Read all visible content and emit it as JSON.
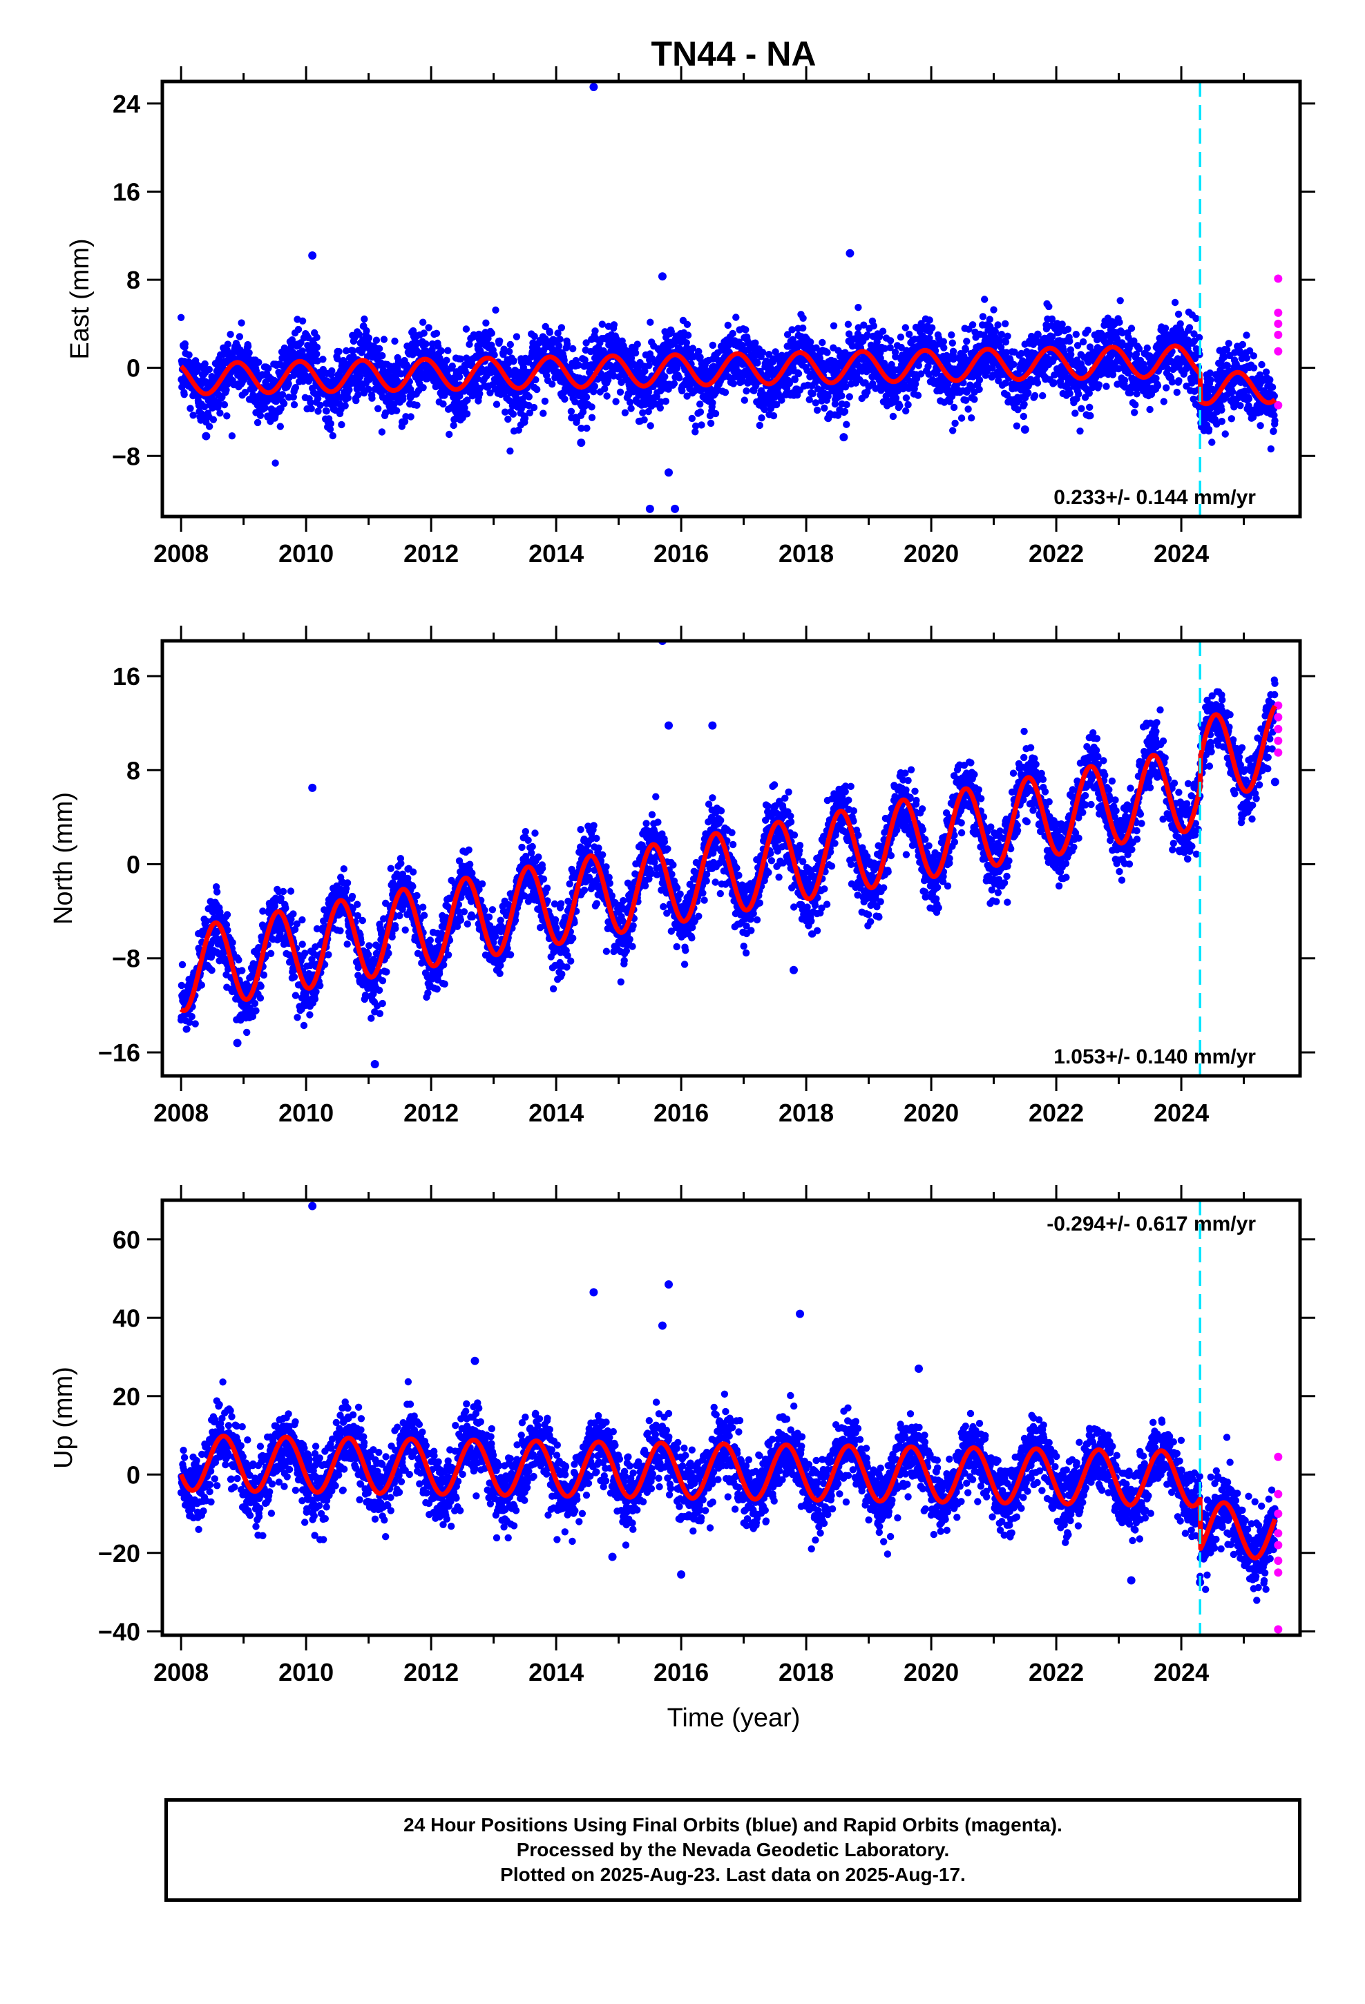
{
  "chart_data": {
    "type": "scatter",
    "title": "TN44 - NA",
    "xlabel": "Time (year)",
    "x_ticks": [
      "2008",
      "2010",
      "2012",
      "2014",
      "2016",
      "2018",
      "2020",
      "2022",
      "2024"
    ],
    "xlim": [
      2007.7,
      2025.9
    ],
    "event_line_x": 2024.3,
    "colors": {
      "final_orbits": "#0000ff",
      "rapid_orbits": "#ff00ff",
      "fit": "#ff0000",
      "event": "#00e5ff"
    },
    "panels": [
      {
        "name": "East",
        "ylabel": "East (mm)",
        "ylim": [
          -13.5,
          26
        ],
        "y_ticks": [
          "24",
          "16",
          "8",
          "0",
          "−8"
        ],
        "y_tick_values": [
          24,
          16,
          8,
          0,
          -8
        ],
        "rate": "0.233+/- 0.144 mm/yr",
        "rate_position": "bottom-right",
        "fit": {
          "offset": -1.0,
          "slope": 0.1,
          "amplitude": 1.4,
          "peak_phase": 0.9,
          "step_at_event": -2.5
        },
        "scatter_sigma": 1.6,
        "outliers": [
          [
            2014.6,
            25.5
          ],
          [
            2010.1,
            10.2
          ],
          [
            2018.7,
            10.4
          ],
          [
            2015.7,
            8.3
          ],
          [
            2015.8,
            -9.5
          ],
          [
            2015.5,
            -12.8
          ],
          [
            2015.9,
            -12.8
          ],
          [
            2014.4,
            -6.8
          ],
          [
            2008.4,
            -6.2
          ],
          [
            2018.6,
            -6.3
          ],
          [
            2021.5,
            -5.6
          ]
        ],
        "rapid_points": [
          [
            2025.55,
            8.1
          ],
          [
            2025.55,
            5.0
          ],
          [
            2025.55,
            4.0
          ],
          [
            2025.55,
            3.0
          ],
          [
            2025.55,
            1.5
          ],
          [
            2025.55,
            -3.4
          ]
        ]
      },
      {
        "name": "North",
        "ylabel": "North (mm)",
        "ylim": [
          -18,
          19
        ],
        "y_ticks": [
          "16",
          "8",
          "0",
          "−8",
          "−16"
        ],
        "y_tick_values": [
          16,
          8,
          0,
          -8,
          -16
        ],
        "rate": "1.053+/- 0.140 mm/yr",
        "rate_position": "bottom-right",
        "fit": {
          "offset": -9.0,
          "slope": 0.95,
          "amplitude": 3.5,
          "peak_phase": 0.55,
          "step_at_event": 2.5
        },
        "scatter_sigma": 1.4,
        "outliers": [
          [
            2015.7,
            19.0
          ],
          [
            2015.8,
            11.8
          ],
          [
            2016.5,
            11.8
          ],
          [
            2010.1,
            6.5
          ],
          [
            2011.1,
            -17.0
          ],
          [
            2008.9,
            -15.2
          ],
          [
            2017.8,
            -9.0
          ],
          [
            2025.5,
            7.0
          ]
        ],
        "rapid_points": [
          [
            2025.55,
            13.5
          ],
          [
            2025.55,
            12.5
          ],
          [
            2025.55,
            11.5
          ],
          [
            2025.55,
            10.5
          ],
          [
            2025.55,
            9.5
          ]
        ]
      },
      {
        "name": "Up",
        "ylabel": "Up (mm)",
        "ylim": [
          -41,
          70
        ],
        "y_ticks": [
          "60",
          "40",
          "20",
          "0",
          "−20",
          "−40"
        ],
        "y_tick_values": [
          60,
          40,
          20,
          0,
          -20,
          -40
        ],
        "rate": "-0.294+/- 0.617 mm/yr",
        "rate_position": "top-right",
        "fit": {
          "offset": 3.0,
          "slope": -0.25,
          "amplitude": 7.0,
          "peak_phase": 0.68,
          "step_at_event": -13.0
        },
        "scatter_sigma": 4.5,
        "outliers": [
          [
            2010.1,
            68.5
          ],
          [
            2014.6,
            46.5
          ],
          [
            2015.8,
            48.5
          ],
          [
            2015.7,
            38.0
          ],
          [
            2017.9,
            41.0
          ],
          [
            2016.0,
            -25.5
          ],
          [
            2014.9,
            -21.0
          ],
          [
            2019.8,
            27.0
          ],
          [
            2012.7,
            29.0
          ],
          [
            2023.2,
            -27.0
          ],
          [
            2024.3,
            -27.5
          ]
        ],
        "rapid_points": [
          [
            2025.55,
            4.5
          ],
          [
            2025.55,
            -5.0
          ],
          [
            2025.55,
            -10.0
          ],
          [
            2025.55,
            -15.0
          ],
          [
            2025.55,
            -18.0
          ],
          [
            2025.55,
            -22.0
          ],
          [
            2025.55,
            -25.0
          ],
          [
            2025.55,
            -39.5
          ]
        ]
      }
    ]
  },
  "footer": {
    "line1": "24 Hour Positions Using Final Orbits (blue) and Rapid Orbits (magenta).",
    "line2": "Processed by the Nevada Geodetic Laboratory.",
    "line3": "Plotted on 2025-Aug-23. Last data on 2025-Aug-17."
  }
}
